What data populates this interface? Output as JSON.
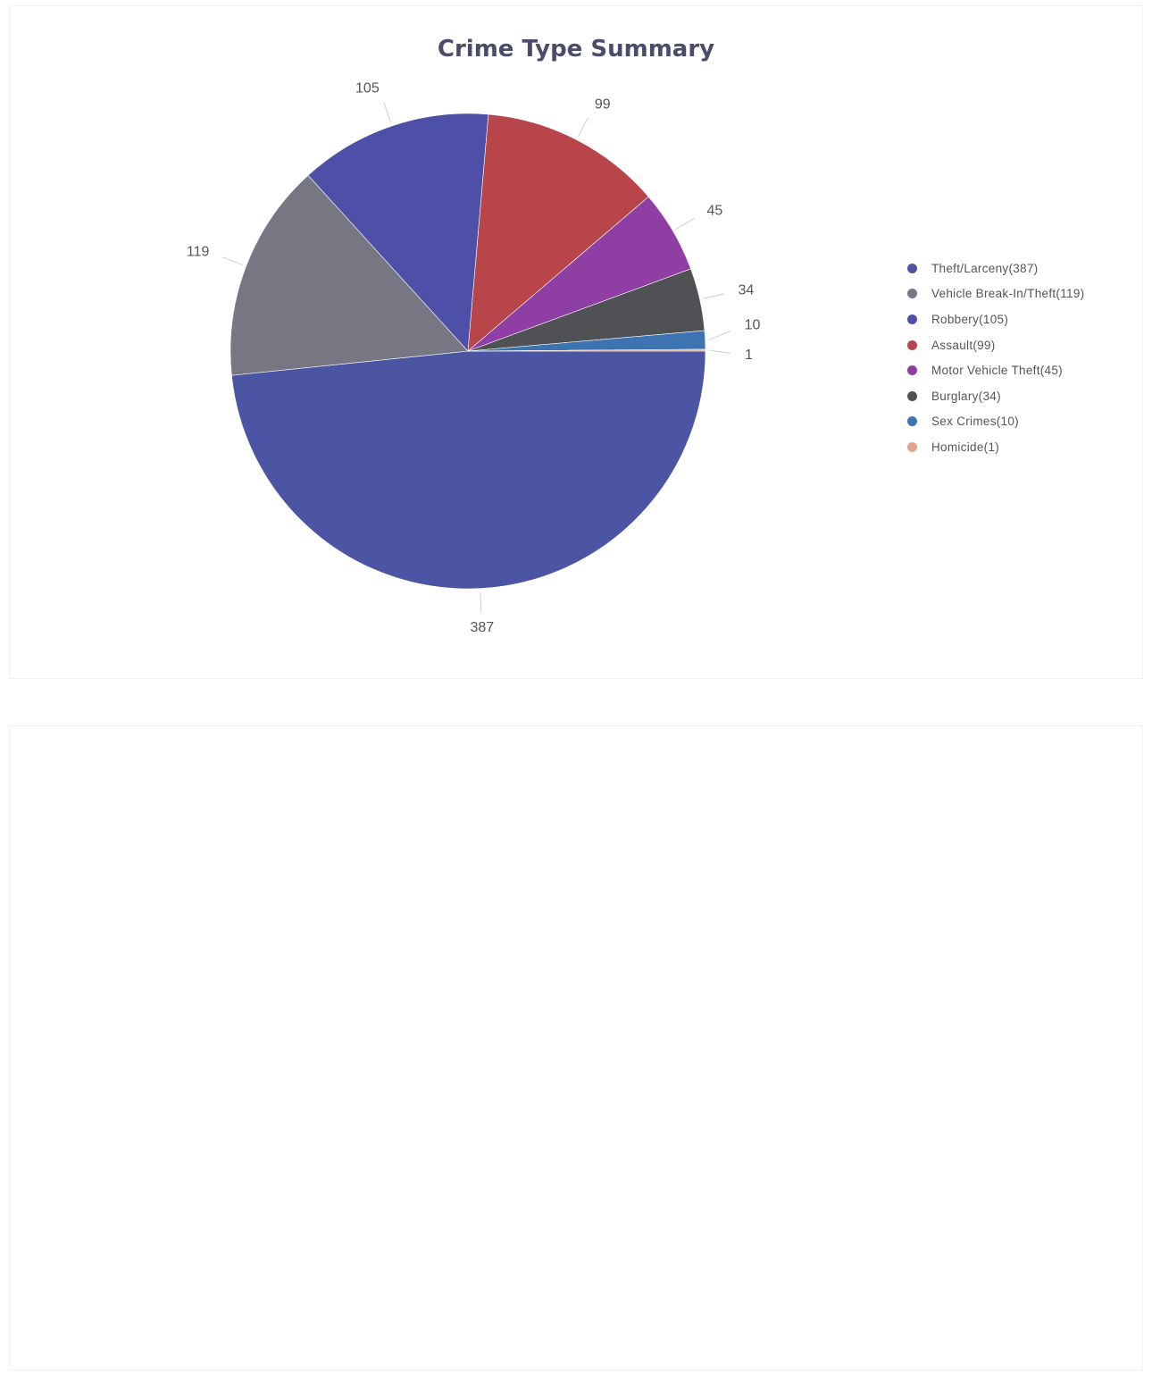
{
  "chart_data": {
    "type": "pie",
    "title": "Crime Type Summary",
    "legend_position": "right",
    "slices": [
      {
        "label": "Theft/Larceny",
        "value": 387,
        "value_label": "387",
        "legend_text": "Theft/Larceny(387)",
        "color": "#4b55a3"
      },
      {
        "label": "Vehicle Break-In/Theft",
        "value": 119,
        "value_label": "119",
        "legend_text": "Vehicle Break-In/Theft(119)",
        "color": "#777783"
      },
      {
        "label": "Robbery",
        "value": 105,
        "value_label": "105",
        "legend_text": "Robbery(105)",
        "color": "#4d50a6"
      },
      {
        "label": "Assault",
        "value": 99,
        "value_label": "99",
        "legend_text": "Assault(99)",
        "color": "#b8454a"
      },
      {
        "label": "Motor Vehicle Theft",
        "value": 45,
        "value_label": "45",
        "legend_text": "Motor Vehicle Theft(45)",
        "color": "#8f3fa4"
      },
      {
        "label": "Burglary",
        "value": 34,
        "value_label": "34",
        "legend_text": "Burglary(34)",
        "color": "#4f5154"
      },
      {
        "label": "Sex Crimes",
        "value": 10,
        "value_label": "10",
        "legend_text": "Sex Crimes(10)",
        "color": "#3d73b0"
      },
      {
        "label": "Homicide",
        "value": 1,
        "value_label": "1",
        "legend_text": "Homicide(1)",
        "color": "#e0a48e"
      }
    ]
  }
}
